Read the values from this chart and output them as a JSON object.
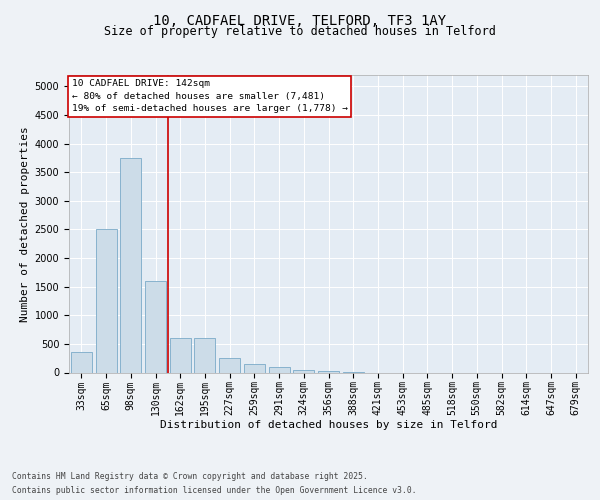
{
  "title1": "10, CADFAEL DRIVE, TELFORD, TF3 1AY",
  "title2": "Size of property relative to detached houses in Telford",
  "xlabel": "Distribution of detached houses by size in Telford",
  "ylabel": "Number of detached properties",
  "categories": [
    "33sqm",
    "65sqm",
    "98sqm",
    "130sqm",
    "162sqm",
    "195sqm",
    "227sqm",
    "259sqm",
    "291sqm",
    "324sqm",
    "356sqm",
    "388sqm",
    "421sqm",
    "453sqm",
    "485sqm",
    "518sqm",
    "550sqm",
    "582sqm",
    "614sqm",
    "647sqm",
    "679sqm"
  ],
  "values": [
    350,
    2500,
    3750,
    1600,
    600,
    600,
    250,
    150,
    100,
    50,
    20,
    5,
    0,
    0,
    0,
    0,
    0,
    0,
    0,
    0,
    0
  ],
  "bar_color": "#ccdce8",
  "bar_edge_color": "#7aaac8",
  "red_line_x": 3.5,
  "annotation_line1": "10 CADFAEL DRIVE: 142sqm",
  "annotation_line2": "← 80% of detached houses are smaller (7,481)",
  "annotation_line3": "19% of semi-detached houses are larger (1,778) →",
  "annotation_box_color": "#cc0000",
  "ylim": [
    0,
    5200
  ],
  "yticks": [
    0,
    500,
    1000,
    1500,
    2000,
    2500,
    3000,
    3500,
    4000,
    4500,
    5000
  ],
  "footnote1": "Contains HM Land Registry data © Crown copyright and database right 2025.",
  "footnote2": "Contains public sector information licensed under the Open Government Licence v3.0.",
  "bg_color": "#eef2f6",
  "plot_bg_color": "#e4ecf4",
  "title_fontsize": 10,
  "subtitle_fontsize": 8.5,
  "axis_label_fontsize": 8,
  "tick_fontsize": 7,
  "annot_fontsize": 6.8,
  "footnote_fontsize": 5.8
}
